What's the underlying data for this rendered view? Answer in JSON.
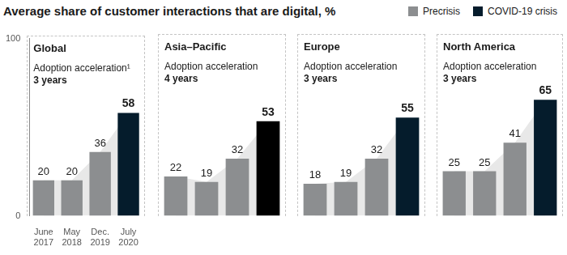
{
  "title": "Average share of customer interactions that are digital, %",
  "chart_data": [
    {
      "type": "bar",
      "title": "Global",
      "annotations": [
        "Adoption acceleration¹",
        "3 years"
      ],
      "categories": [
        "June 2017",
        "May 2018",
        "Dec. 2019",
        "July 2020"
      ],
      "series": [
        {
          "name": "Precrisis",
          "color": "#8c8e90",
          "values": [
            20,
            20,
            36,
            null
          ]
        },
        {
          "name": "COVID-19 crisis",
          "color": "#051c2c",
          "values": [
            null,
            null,
            null,
            58
          ]
        }
      ],
      "ylim": [
        0,
        100
      ],
      "yticks": [
        0,
        100
      ],
      "grid": false,
      "data_labels": true,
      "legend": "top-right"
    },
    {
      "type": "bar",
      "title": "Asia–Pacific",
      "annotations": [
        "Adoption acceleration",
        "4 years"
      ],
      "categories": [
        null,
        null,
        null,
        null
      ],
      "series": [
        {
          "name": "Precrisis",
          "color": "#8c8e90",
          "values": [
            22,
            19,
            32,
            null
          ]
        },
        {
          "name": "COVID-19 crisis",
          "color": "#000000",
          "values": [
            null,
            null,
            null,
            53
          ]
        }
      ],
      "ylim": [
        0,
        100
      ],
      "yticks": [
        0,
        100
      ],
      "grid": false,
      "data_labels": true,
      "tick_labels": false
    },
    {
      "type": "bar",
      "title": "Europe",
      "annotations": [
        "Adoption acceleration",
        "3 years"
      ],
      "categories": [
        null,
        null,
        null,
        null
      ],
      "series": [
        {
          "name": "Precrisis",
          "color": "#8c8e90",
          "values": [
            18,
            19,
            32,
            null
          ]
        },
        {
          "name": "COVID-19 crisis",
          "color": "#051c2c",
          "values": [
            null,
            null,
            null,
            55
          ]
        }
      ],
      "ylim": [
        0,
        100
      ],
      "yticks": [
        0,
        100
      ],
      "grid": false,
      "data_labels": true,
      "tick_labels": false
    },
    {
      "type": "bar",
      "title": "North America",
      "annotations": [
        "Adoption acceleration",
        "3 years"
      ],
      "categories": [
        null,
        null,
        null,
        null
      ],
      "series": [
        {
          "name": "Precrisis",
          "color": "#8c8e90",
          "values": [
            25,
            25,
            41,
            null
          ]
        },
        {
          "name": "COVID-19 crisis",
          "color": "#051c2c",
          "values": [
            null,
            null,
            null,
            65
          ]
        }
      ],
      "ylim": [
        0,
        100
      ],
      "yticks": [
        0,
        100
      ],
      "grid": false,
      "data_labels": true,
      "tick_labels": false
    }
  ]
}
